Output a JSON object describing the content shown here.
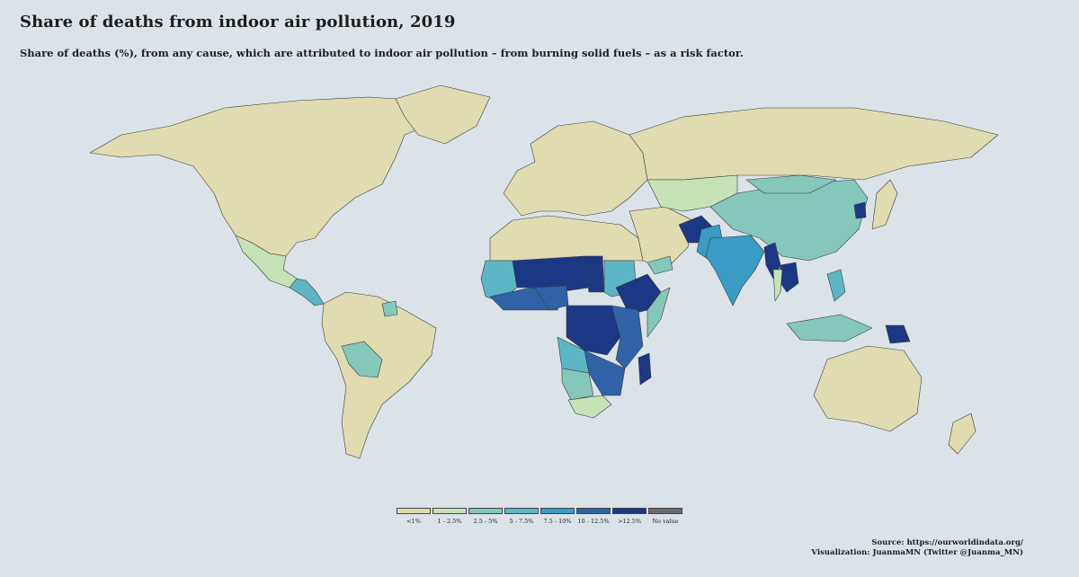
{
  "title": "Share of deaths from indoor air pollution, 2019",
  "subtitle": "Share of deaths (%), from any cause, which are attributed to indoor air pollution – from burning solid fuels – as a risk factor.",
  "legend": [
    {
      "label": "<1%",
      "color": "#e0dcb1"
    },
    {
      "label": "1 - 2.5%",
      "color": "#c5e3b7"
    },
    {
      "label": "2.5 - 5%",
      "color": "#85c7ba"
    },
    {
      "label": "5 - 7.5%",
      "color": "#5cb6c6"
    },
    {
      "label": "7.5 - 10%",
      "color": "#3a9bc4"
    },
    {
      "label": "10 - 12.5%",
      "color": "#2f63a6"
    },
    {
      "label": ">12.5%",
      "color": "#1c3784"
    },
    {
      "label": "No value",
      "color": "#6b6b6b"
    }
  ],
  "source": {
    "line1": "Source: https://ourworldindata.org/",
    "line2": "Visualization: JuanmaMN (Twitter @Juanma_MN)"
  }
}
